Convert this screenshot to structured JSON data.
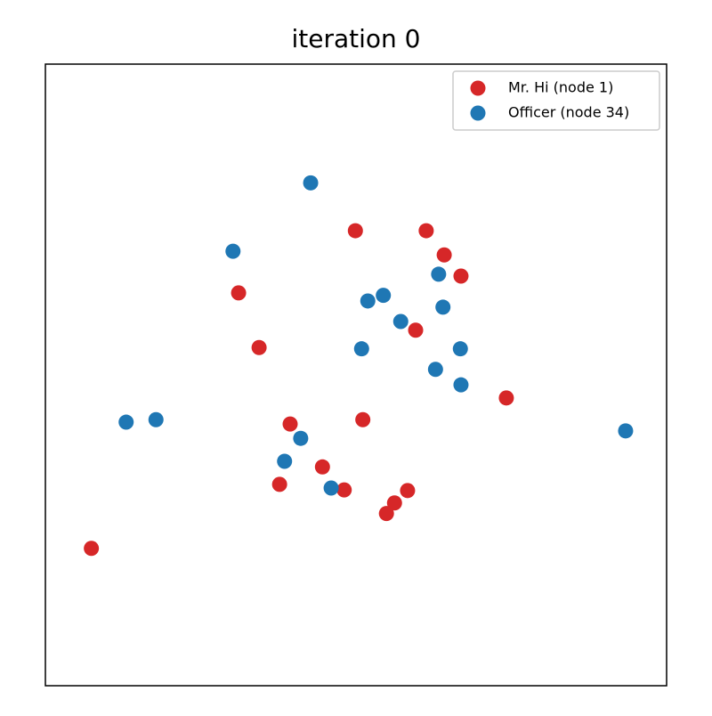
{
  "chart_data": {
    "type": "scatter",
    "title": "iteration 0",
    "xlim": [
      0,
      1
    ],
    "ylim": [
      0,
      1
    ],
    "grid": false,
    "legend": "upper right",
    "series": [
      {
        "name": "Mr. Hi (node 1)",
        "color": "#d62728",
        "x": [
          0.499,
          0.613,
          0.642,
          0.669,
          0.311,
          0.344,
          0.596,
          0.742,
          0.511,
          0.394,
          0.446,
          0.377,
          0.481,
          0.583,
          0.562,
          0.549,
          0.074
        ],
        "values": [
          0.732,
          0.732,
          0.693,
          0.659,
          0.632,
          0.544,
          0.572,
          0.463,
          0.428,
          0.421,
          0.352,
          0.324,
          0.315,
          0.314,
          0.294,
          0.277,
          0.221
        ]
      },
      {
        "name": "Officer (node 34)",
        "color": "#1f77b4",
        "x": [
          0.427,
          0.302,
          0.633,
          0.544,
          0.519,
          0.64,
          0.572,
          0.509,
          0.668,
          0.628,
          0.669,
          0.13,
          0.178,
          0.934,
          0.411,
          0.385,
          0.46
        ],
        "values": [
          0.809,
          0.699,
          0.662,
          0.628,
          0.619,
          0.609,
          0.586,
          0.542,
          0.542,
          0.509,
          0.484,
          0.424,
          0.428,
          0.41,
          0.398,
          0.361,
          0.318
        ]
      }
    ]
  }
}
